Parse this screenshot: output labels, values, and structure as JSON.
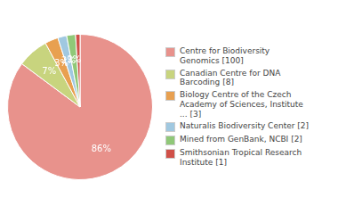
{
  "chart_data": {
    "type": "pie",
    "categories": [
      "Centre for Biodiversity\nGenomics [100]",
      "Canadian Centre for DNA\nBarcoding [8]",
      "Biology Centre of the Czech\nAcademy of Sciences, Institute\n... [3]",
      "Naturalis Biodiversity Center [2]",
      "Mined from GenBank, NCBI [2]",
      "Smithsonian Tropical Research\nInstitute [1]"
    ],
    "values": [
      86,
      7,
      3,
      2,
      2,
      1
    ],
    "value_labels": [
      "86%",
      "7%",
      "3%",
      "2%",
      "2%",
      null
    ],
    "colors": [
      "#e8928c",
      "#c8d47e",
      "#e8a050",
      "#a0c8e0",
      "#90c878",
      "#d05048"
    ],
    "data_labels": true,
    "legend": "right"
  }
}
